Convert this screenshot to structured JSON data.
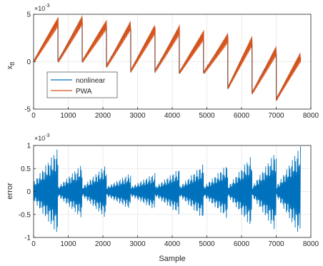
{
  "chart_data": [
    {
      "type": "line",
      "xlabel": "",
      "ylabel": "x_B",
      "ylabel_main": "x",
      "ylabel_sub": "B",
      "exponent_label": "×10",
      "exponent_power": "-3",
      "xlim": [
        0,
        8000
      ],
      "ylim": [
        -0.005,
        0.005
      ],
      "xticks": [
        "0",
        "1000",
        "2000",
        "3000",
        "4000",
        "5000",
        "6000",
        "7000",
        "8000"
      ],
      "yticks": [
        "-5",
        "0",
        "5"
      ],
      "grid": true,
      "legend_position": "lower-left",
      "series": [
        {
          "name": "nonlinear",
          "color": "#0072BD"
        },
        {
          "name": "PWA",
          "color": "#D95319"
        }
      ],
      "sawtooth_segments": [
        {
          "x_start": 0,
          "x_end": 700,
          "y_start": 0.0,
          "y_end": 0.0043
        },
        {
          "x_start": 700,
          "x_end": 1400,
          "y_start": 0.0,
          "y_end": 0.0043
        },
        {
          "x_start": 1400,
          "x_end": 2100,
          "y_start": 0.0,
          "y_end": 0.004
        },
        {
          "x_start": 2100,
          "x_end": 2800,
          "y_start": -0.0005,
          "y_end": 0.0038
        },
        {
          "x_start": 2800,
          "x_end": 3500,
          "y_start": -0.001,
          "y_end": 0.0035
        },
        {
          "x_start": 3500,
          "x_end": 4200,
          "y_start": -0.001,
          "y_end": 0.0033
        },
        {
          "x_start": 4200,
          "x_end": 4900,
          "y_start": -0.0012,
          "y_end": 0.0028
        },
        {
          "x_start": 4900,
          "x_end": 5600,
          "y_start": -0.0012,
          "y_end": 0.0025
        },
        {
          "x_start": 5600,
          "x_end": 6300,
          "y_start": -0.0028,
          "y_end": 0.0022
        },
        {
          "x_start": 6300,
          "x_end": 7000,
          "y_start": -0.0033,
          "y_end": 0.0012
        },
        {
          "x_start": 7000,
          "x_end": 7700,
          "y_start": -0.004,
          "y_end": 0.0005
        }
      ]
    },
    {
      "type": "line",
      "xlabel": "Sample",
      "ylabel": "error",
      "exponent_label": "×10",
      "exponent_power": "-3",
      "xlim": [
        0,
        8000
      ],
      "ylim": [
        -0.001,
        0.001
      ],
      "xticks": [
        "0",
        "1000",
        "2000",
        "3000",
        "4000",
        "5000",
        "6000",
        "7000",
        "8000"
      ],
      "yticks": [
        "-1",
        "-0.5",
        "0",
        "0.5",
        "1"
      ],
      "grid": true,
      "series": [
        {
          "name": "error",
          "color": "#0072BD"
        }
      ],
      "envelope_segments": [
        {
          "x_start": 0,
          "x_end": 700,
          "amp_start": 0.0002,
          "amp_end": 0.00095
        },
        {
          "x_start": 700,
          "x_end": 1400,
          "amp_start": 0.0001,
          "amp_end": 0.0006
        },
        {
          "x_start": 1400,
          "x_end": 2100,
          "amp_start": 0.0001,
          "amp_end": 0.0006
        },
        {
          "x_start": 2100,
          "x_end": 2800,
          "amp_start": 0.0001,
          "amp_end": 0.0004
        },
        {
          "x_start": 2800,
          "x_end": 3500,
          "amp_start": 0.0001,
          "amp_end": 0.0004
        },
        {
          "x_start": 3500,
          "x_end": 4200,
          "amp_start": 0.0001,
          "amp_end": 0.0005
        },
        {
          "x_start": 4200,
          "x_end": 4900,
          "amp_start": 0.0001,
          "amp_end": 0.0006
        },
        {
          "x_start": 4900,
          "x_end": 5600,
          "amp_start": 0.0001,
          "amp_end": 0.0006
        },
        {
          "x_start": 5600,
          "x_end": 6300,
          "amp_start": 0.0001,
          "amp_end": 0.0008
        },
        {
          "x_start": 6300,
          "x_end": 7000,
          "amp_start": 0.0001,
          "amp_end": 0.0009
        },
        {
          "x_start": 7000,
          "x_end": 7700,
          "amp_start": 0.0001,
          "amp_end": 0.001
        }
      ]
    }
  ]
}
